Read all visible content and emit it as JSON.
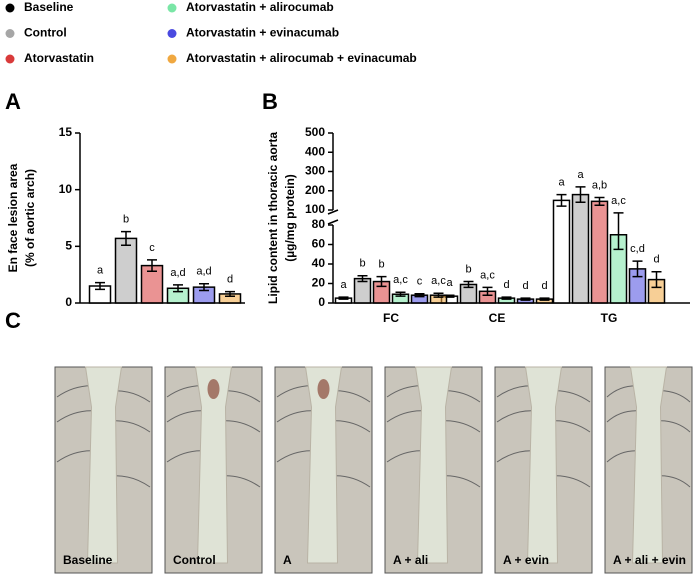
{
  "chart_data": [
    {
      "type": "bar",
      "panel": "A",
      "ylabel": [
        "En face lesion area",
        "(% of aortic arch)"
      ],
      "ylim": [
        0,
        15
      ],
      "yticks": [
        0,
        5,
        10,
        15
      ],
      "series": [
        {
          "name": "Baseline",
          "color": "#000000",
          "values": [
            1.5
          ],
          "errors": [
            0.3
          ],
          "annotations": [
            "a"
          ]
        },
        {
          "name": "Control",
          "color": "#a6a6a6",
          "values": [
            5.7
          ],
          "errors": [
            0.6
          ],
          "annotations": [
            "b"
          ]
        },
        {
          "name": "Atorvastatin",
          "color": "#d93a3a",
          "values": [
            3.3
          ],
          "errors": [
            0.5
          ],
          "annotations": [
            "c"
          ]
        },
        {
          "name": "Atorvastatin + alirocumab",
          "color": "#7ae6a6",
          "values": [
            1.3
          ],
          "errors": [
            0.3
          ],
          "annotations": [
            "a,d"
          ]
        },
        {
          "name": "Atorvastatin + evinacumab",
          "color": "#4a4ae0",
          "values": [
            1.4
          ],
          "errors": [
            0.3
          ],
          "annotations": [
            "a,d"
          ]
        },
        {
          "name": "Atorvastatin + alirocumab + evinacumab",
          "color": "#f0a840",
          "values": [
            0.8
          ],
          "errors": [
            0.2
          ],
          "annotations": [
            "d"
          ]
        }
      ]
    },
    {
      "type": "bar",
      "panel": "B",
      "ylabel": [
        "Lipid content in thoracic aorta",
        "(µg/mg protein)"
      ],
      "categories": [
        "FC",
        "CE",
        "TG"
      ],
      "ylim": [
        0,
        500
      ],
      "ybreak": [
        80,
        100
      ],
      "yticks": [
        0,
        20,
        40,
        60,
        80,
        100,
        200,
        300,
        400,
        500
      ],
      "series": [
        {
          "color": "#000000",
          "values": [
            5,
            7,
            150
          ],
          "errors": [
            1,
            1,
            30
          ],
          "annotations": [
            "a",
            "a",
            "a"
          ]
        },
        {
          "color": "#a6a6a6",
          "values": [
            25,
            19,
            180
          ],
          "errors": [
            3,
            3,
            40
          ],
          "annotations": [
            "b",
            "b",
            "a"
          ]
        },
        {
          "color": "#d93a3a",
          "values": [
            22,
            12,
            145
          ],
          "errors": [
            5,
            4,
            20
          ],
          "annotations": [
            "b",
            "a,c",
            "a,b"
          ]
        },
        {
          "color": "#7ae6a6",
          "values": [
            9,
            5,
            70
          ],
          "errors": [
            2,
            1,
            15
          ],
          "annotations": [
            "a,c",
            "d",
            "a,c"
          ]
        },
        {
          "color": "#4a4ae0",
          "values": [
            8,
            4,
            35
          ],
          "errors": [
            1.5,
            1,
            8
          ],
          "annotations": [
            "c",
            "d",
            "c,d"
          ]
        },
        {
          "color": "#f0a840",
          "values": [
            8,
            4,
            24
          ],
          "errors": [
            2,
            1,
            8
          ],
          "annotations": [
            "a,c",
            "d",
            "d"
          ]
        }
      ]
    }
  ],
  "photos": {
    "panel": "C",
    "labels": [
      "Baseline",
      "Control",
      "A",
      "A + ali",
      "A + evin",
      "A + ali + evin"
    ]
  }
}
